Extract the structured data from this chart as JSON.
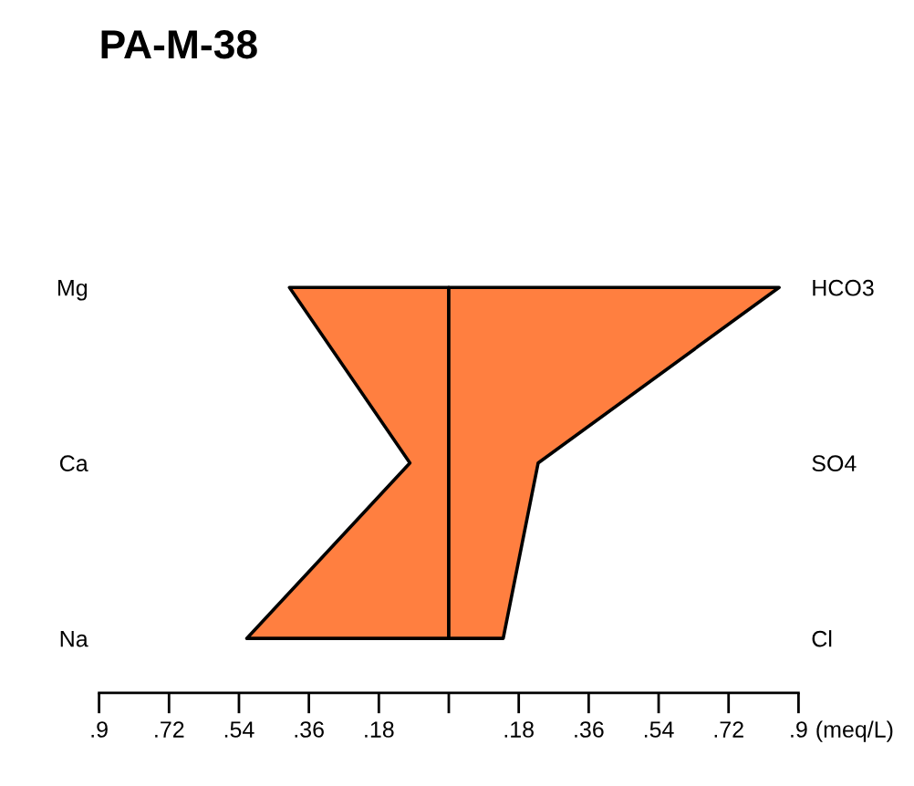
{
  "chart_data": {
    "type": "area",
    "orientation": "horizontal",
    "title": "PA-M-38",
    "xlabel": "(meq/L)",
    "categories": [
      "Mg",
      "Ca",
      "Na"
    ],
    "y2_categories": [
      "HCO3",
      "SO4",
      "Cl"
    ],
    "series": [
      {
        "color": "#ff7f40",
        "values": [
          -0.41,
          -0.1,
          -0.52
        ]
      },
      {
        "color": "#ff7f40",
        "values": [
          0.85,
          0.23,
          0.14
        ]
      }
    ],
    "xlim": [
      -0.9,
      0.9
    ],
    "xticks": [
      {
        "value": -0.9,
        "label": ".9"
      },
      {
        "value": -0.72,
        "label": ".72"
      },
      {
        "value": -0.54,
        "label": ".54"
      },
      {
        "value": -0.36,
        "label": ".36"
      },
      {
        "value": -0.18,
        "label": ".18"
      },
      {
        "value": 0,
        "label": null
      },
      {
        "value": 0.18,
        "label": ".18"
      },
      {
        "value": 0.36,
        "label": ".36"
      },
      {
        "value": 0.54,
        "label": ".54"
      },
      {
        "value": 0.72,
        "label": ".72"
      },
      {
        "value": 0.9,
        "label": ".9"
      }
    ]
  }
}
